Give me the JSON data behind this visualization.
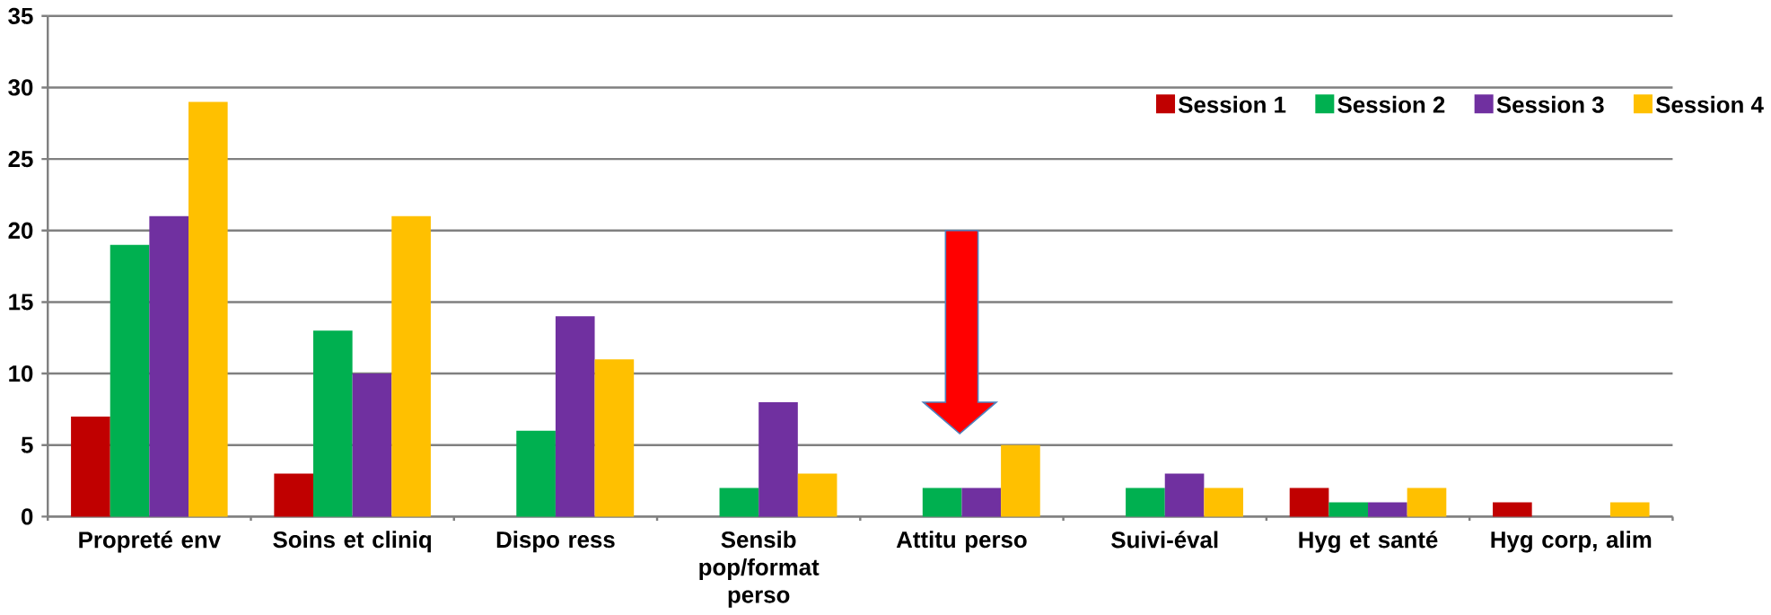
{
  "chart_data": {
    "type": "bar",
    "categories": [
      "Propreté env",
      "Soins et cliniq",
      "Dispo ress",
      "Sensib pop/format perso",
      "Attitu perso",
      "Suivi-éval",
      "Hyg et santé",
      "Hyg corp, alim"
    ],
    "series": [
      {
        "name": "Session 1",
        "color": "#c00000",
        "values": [
          7,
          3,
          0,
          0,
          0,
          0,
          2,
          1
        ]
      },
      {
        "name": "Session 2",
        "color": "#00b050",
        "values": [
          19,
          13,
          6,
          2,
          2,
          2,
          1,
          0
        ]
      },
      {
        "name": "Session 3",
        "color": "#7030a0",
        "values": [
          21,
          10,
          14,
          8,
          2,
          3,
          1,
          0
        ]
      },
      {
        "name": "Session 4",
        "color": "#ffc000",
        "values": [
          29,
          21,
          11,
          3,
          5,
          2,
          2,
          1
        ]
      }
    ],
    "ylim": [
      0,
      35
    ],
    "yticks": [
      0,
      5,
      10,
      15,
      20,
      25,
      30,
      35
    ],
    "grid": "y",
    "legend": "top right"
  }
}
